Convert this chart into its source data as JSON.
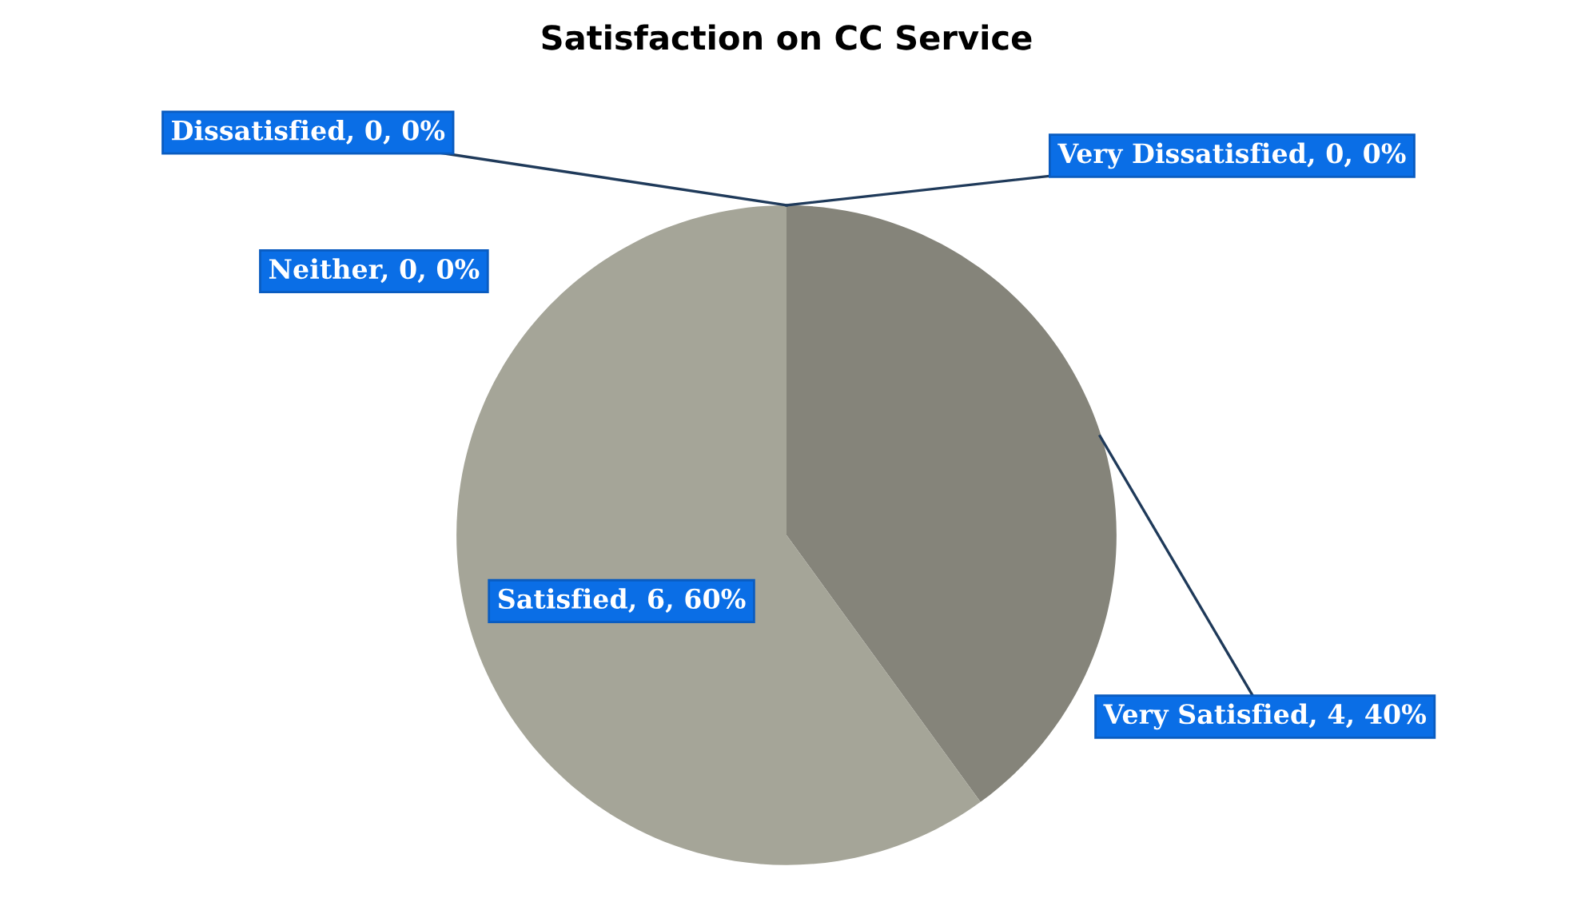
{
  "chart_data": {
    "type": "pie",
    "title": "Satisfaction on CC Service",
    "categories": [
      "Very Satisfied",
      "Satisfied",
      "Neither",
      "Dissatisfied",
      "Very Dissatisfied"
    ],
    "values": [
      4,
      6,
      0,
      0,
      0
    ],
    "colors": [
      "#85847a",
      "#a5a598",
      "#b0b0a4",
      "#9a9a8e",
      "#8e8e82"
    ],
    "value_labels": [
      ", 4, 40%",
      ", 6, 60%",
      ", 0, 0%",
      ", 0, 0%",
      ", 0, 0%"
    ]
  }
}
